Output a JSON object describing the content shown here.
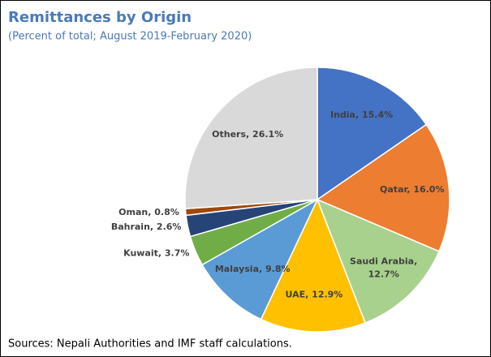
{
  "chart_data": {
    "type": "pie",
    "title": "Remittances by Origin",
    "subtitle": "(Percent of total; August 2019-February 2020)",
    "source": "Sources: Nepali Authorities and IMF staff calculations.",
    "categories": [
      "India",
      "Qatar",
      "Saudi Arabia",
      "UAE",
      "Malaysia",
      "Kuwait",
      "Bahrain",
      "Oman",
      "Others"
    ],
    "values": [
      15.4,
      16.0,
      12.7,
      12.9,
      9.8,
      3.7,
      2.6,
      0.8,
      26.1
    ],
    "value_labels": [
      "15.4%",
      "16.0%",
      "12.7%",
      "12.9%",
      "9.8%",
      "3.7%",
      "2.6%",
      "0.8%",
      "26.1%"
    ],
    "label_separator": ", ",
    "colors": [
      "#4472c4",
      "#ed7d31",
      "#a9d18e",
      "#ffc000",
      "#5b9bd5",
      "#70ad47",
      "#264478",
      "#9e480e",
      "#d9d9d9"
    ]
  }
}
